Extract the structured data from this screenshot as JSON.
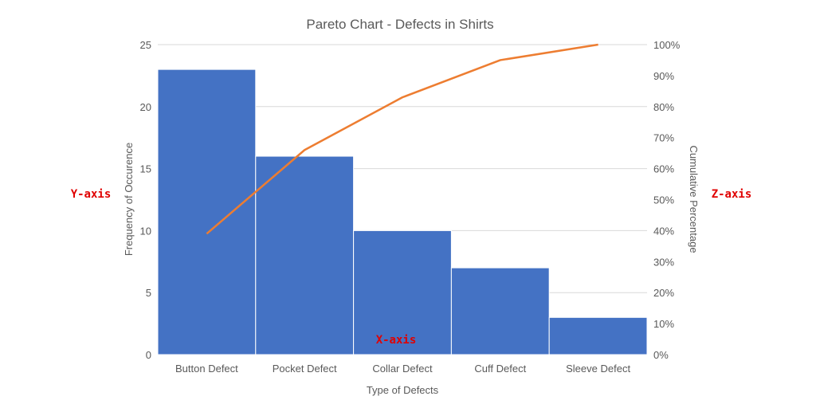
{
  "chart_data": {
    "type": "bar",
    "title": "Pareto Chart - Defects in Shirts",
    "xlabel": "Type of Defects",
    "ylabel": "Frequency of Occurence",
    "y2label": "Cumulative Percentage",
    "categories": [
      "Button Defect",
      "Pocket Defect",
      "Collar Defect",
      "Cuff Defect",
      "Sleeve Defect"
    ],
    "values": [
      23,
      16,
      10,
      7,
      3
    ],
    "cumulative_percent": [
      39,
      66,
      83,
      95,
      100
    ],
    "ylim": [
      0,
      25
    ],
    "yticks": [
      0,
      5,
      10,
      15,
      20,
      25
    ],
    "y2lim": [
      0,
      100
    ],
    "y2ticks": [
      "0%",
      "10%",
      "20%",
      "30%",
      "40%",
      "50%",
      "60%",
      "70%",
      "80%",
      "90%",
      "100%"
    ],
    "grid": true,
    "bar_color": "#4472C4",
    "line_color": "#ED7D31",
    "annotations": {
      "y_axis": "Y-axis",
      "z_axis": "Z-axis",
      "x_axis": "X-axis",
      "color": "#E00000"
    }
  }
}
